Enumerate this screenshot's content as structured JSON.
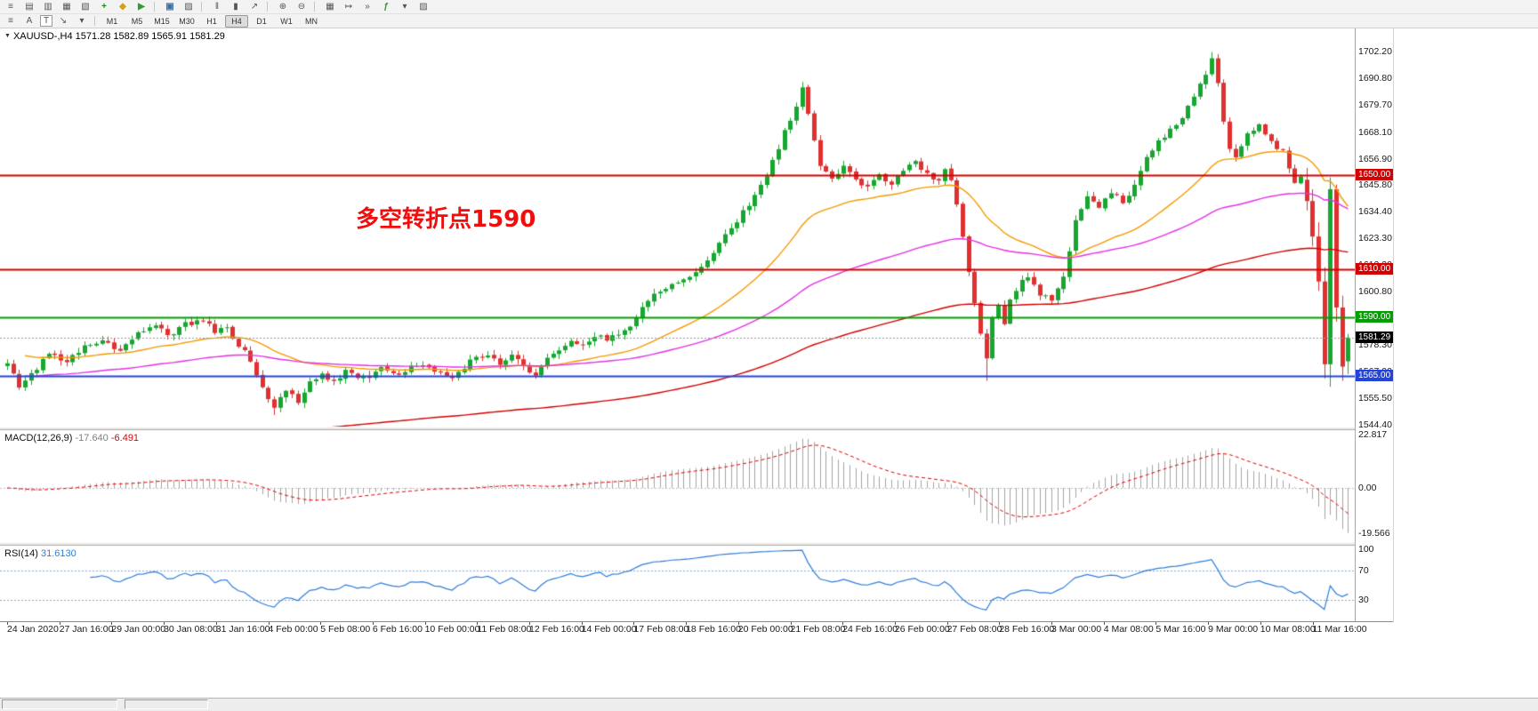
{
  "toolbar_main": {
    "icons": [
      {
        "name": "market-watch-icon",
        "glyph": "≡"
      },
      {
        "name": "data-window-icon",
        "glyph": "▤"
      },
      {
        "name": "navigator-icon",
        "glyph": "▥"
      },
      {
        "name": "terminal-icon",
        "glyph": "▦"
      },
      {
        "name": "strategy-tester-icon",
        "glyph": "▧"
      },
      {
        "name": "new-order-icon",
        "glyph": "+",
        "color": "#168a16"
      },
      {
        "name": "metaeditor-icon",
        "glyph": "◆",
        "color": "#d4a017"
      },
      {
        "name": "autotrading-icon",
        "glyph": "▶",
        "color": "#2e9e2e"
      },
      {
        "sep": true
      },
      {
        "name": "new-chart-icon",
        "glyph": "▣",
        "color": "#3a6ea5"
      },
      {
        "name": "profiles-icon",
        "glyph": "▨"
      },
      {
        "sep": true
      },
      {
        "name": "bar-chart-icon",
        "glyph": "‖"
      },
      {
        "name": "candlestick-chart-icon",
        "glyph": "▮"
      },
      {
        "name": "line-chart-icon",
        "glyph": "↗"
      },
      {
        "sep": true
      },
      {
        "name": "zoom-in-icon",
        "glyph": "⊕"
      },
      {
        "name": "zoom-out-icon",
        "glyph": "⊖"
      },
      {
        "sep": true
      },
      {
        "name": "tile-windows-icon",
        "glyph": "▦"
      },
      {
        "name": "auto-scroll-icon",
        "glyph": "↦"
      },
      {
        "name": "chart-shift-icon",
        "glyph": "»"
      },
      {
        "name": "indicators-icon",
        "glyph": "ƒ",
        "color": "#2e9e2e"
      },
      {
        "name": "periods-icon",
        "glyph": "▾"
      },
      {
        "name": "templates-icon",
        "glyph": "▨"
      }
    ]
  },
  "toolbar_line": {
    "icons": [
      {
        "name": "line-studies-icon",
        "glyph": "≡"
      },
      {
        "name": "text-label-tool-icon",
        "glyph": "A"
      },
      {
        "name": "text-box-tool-icon",
        "glyph": "T",
        "boxed": true
      },
      {
        "name": "arrows-tool-icon",
        "glyph": "↘"
      },
      {
        "name": "tool-dropdown-icon",
        "glyph": "▾"
      }
    ]
  },
  "timeframes": {
    "items": [
      "M1",
      "M5",
      "M15",
      "M30",
      "H1",
      "H4",
      "D1",
      "W1",
      "MN"
    ],
    "active": "H4"
  },
  "chart": {
    "header": {
      "marker": "▼",
      "text": "XAUUSD-,H4  1571.28 1582.89 1565.91 1581.29"
    },
    "annotation": {
      "text": "多空转折点1590",
      "color": "#f20d0d"
    },
    "colors": {
      "up": "#17a62f",
      "down": "#e03131"
    },
    "price_axis_labels": [
      "1702.20",
      "1690.80",
      "1679.70",
      "1668.10",
      "1656.90",
      "1645.80",
      "1634.40",
      "1623.30",
      "1612.20",
      "1600.80",
      "1589.60",
      "1578.30",
      "1567.00",
      "1555.50",
      "1544.40"
    ],
    "hlines": [
      {
        "price": 1650.0,
        "label": "1650.00",
        "color": "#d40000"
      },
      {
        "price": 1610.0,
        "label": "1610.00",
        "color": "#d40000"
      },
      {
        "price": 1590.0,
        "label": "1590.00",
        "color": "#00a000"
      },
      {
        "price": 1565.0,
        "label": "1565.00",
        "color": "#2244dd"
      }
    ],
    "bid": {
      "price": 1581.29,
      "label": "1581.29"
    },
    "time_axis_labels": [
      "24 Jan 2020",
      "27 Jan 16:00",
      "29 Jan 00:00",
      "30 Jan 08:00",
      "31 Jan 16:00",
      "4 Feb 00:00",
      "5 Feb 08:00",
      "6 Feb 16:00",
      "10 Feb 00:00",
      "11 Feb 08:00",
      "12 Feb 16:00",
      "14 Feb 00:00",
      "17 Feb 08:00",
      "18 Feb 16:00",
      "20 Feb 00:00",
      "21 Feb 08:00",
      "24 Feb 16:00",
      "26 Feb 00:00",
      "27 Feb 08:00",
      "28 Feb 16:00",
      "3 Mar 00:00",
      "4 Mar 08:00",
      "5 Mar 16:00",
      "9 Mar 00:00",
      "10 Mar 08:00",
      "11 Mar 16:00"
    ]
  },
  "macd_panel": {
    "label": "MACD(12,26,9)",
    "main_value": "-17.640",
    "signal_value": "-6.491",
    "axis": [
      {
        "value": 22.817,
        "label": "22.817"
      },
      {
        "value": 0,
        "label": "0.00"
      },
      {
        "value": -19.566,
        "label": "-19.566"
      }
    ],
    "histogram_color": "#a4a4a4",
    "signal_color": "#e00000"
  },
  "rsi_panel": {
    "label": "RSI(14)",
    "value": "31.6130",
    "axis": [
      {
        "value": 100,
        "label": "100"
      },
      {
        "value": 70,
        "label": "70"
      },
      {
        "value": 30,
        "label": "30"
      }
    ],
    "levels": [
      70,
      30
    ],
    "line_color": "#2f7ed8"
  },
  "chart_data": {
    "type": "candlestick",
    "symbol": "XAUUSD",
    "timeframe": "H4",
    "bars": 227,
    "last_bar": {
      "open": 1571.28,
      "high": 1582.89,
      "low": 1565.91,
      "close": 1581.29
    },
    "y_axis_range": [
      1544.4,
      1702.2
    ],
    "horizontal_lines": [
      1650,
      1610,
      1590,
      1565
    ],
    "price_anchors": [
      [
        0,
        1571
      ],
      [
        2,
        1561
      ],
      [
        4,
        1566
      ],
      [
        7,
        1574
      ],
      [
        10,
        1571
      ],
      [
        13,
        1577
      ],
      [
        16,
        1580
      ],
      [
        19,
        1576
      ],
      [
        22,
        1583
      ],
      [
        25,
        1587
      ],
      [
        27,
        1582
      ],
      [
        30,
        1587
      ],
      [
        33,
        1589
      ],
      [
        35,
        1583
      ],
      [
        37,
        1586
      ],
      [
        39,
        1578
      ],
      [
        41,
        1572
      ],
      [
        43,
        1560
      ],
      [
        45,
        1551
      ],
      [
        47,
        1559
      ],
      [
        49,
        1554
      ],
      [
        51,
        1562
      ],
      [
        53,
        1566
      ],
      [
        55,
        1563
      ],
      [
        57,
        1567
      ],
      [
        60,
        1564
      ],
      [
        63,
        1568
      ],
      [
        66,
        1565
      ],
      [
        69,
        1570
      ],
      [
        72,
        1567
      ],
      [
        75,
        1565
      ],
      [
        78,
        1571
      ],
      [
        81,
        1574
      ],
      [
        83,
        1570
      ],
      [
        85,
        1574
      ],
      [
        87,
        1569
      ],
      [
        89,
        1566
      ],
      [
        91,
        1573
      ],
      [
        93,
        1577
      ],
      [
        95,
        1580
      ],
      [
        97,
        1579
      ],
      [
        99,
        1582
      ],
      [
        101,
        1580
      ],
      [
        103,
        1583
      ],
      [
        105,
        1587
      ],
      [
        107,
        1594
      ],
      [
        109,
        1600
      ],
      [
        111,
        1602
      ],
      [
        113,
        1605
      ],
      [
        115,
        1608
      ],
      [
        117,
        1611
      ],
      [
        119,
        1617
      ],
      [
        121,
        1624
      ],
      [
        123,
        1631
      ],
      [
        125,
        1638
      ],
      [
        127,
        1645
      ],
      [
        129,
        1656
      ],
      [
        131,
        1668
      ],
      [
        133,
        1680
      ],
      [
        134,
        1687
      ],
      [
        135,
        1676
      ],
      [
        136,
        1664
      ],
      [
        137,
        1653
      ],
      [
        139,
        1648
      ],
      [
        141,
        1654
      ],
      [
        143,
        1649
      ],
      [
        145,
        1644
      ],
      [
        147,
        1651
      ],
      [
        149,
        1646
      ],
      [
        151,
        1652
      ],
      [
        153,
        1655
      ],
      [
        155,
        1650
      ],
      [
        157,
        1648
      ],
      [
        158,
        1653
      ],
      [
        159,
        1648
      ],
      [
        160,
        1638
      ],
      [
        161,
        1625
      ],
      [
        162,
        1610
      ],
      [
        163,
        1595
      ],
      [
        164,
        1583
      ],
      [
        165,
        1573
      ],
      [
        166,
        1590
      ],
      [
        167,
        1594
      ],
      [
        168,
        1586
      ],
      [
        169,
        1598
      ],
      [
        170,
        1602
      ],
      [
        172,
        1607
      ],
      [
        174,
        1600
      ],
      [
        176,
        1597
      ],
      [
        178,
        1607
      ],
      [
        180,
        1630
      ],
      [
        182,
        1640
      ],
      [
        184,
        1637
      ],
      [
        186,
        1642
      ],
      [
        188,
        1639
      ],
      [
        190,
        1645
      ],
      [
        192,
        1657
      ],
      [
        194,
        1664
      ],
      [
        196,
        1670
      ],
      [
        198,
        1674
      ],
      [
        200,
        1683
      ],
      [
        202,
        1692
      ],
      [
        203,
        1700
      ],
      [
        204,
        1688
      ],
      [
        205,
        1672
      ],
      [
        206,
        1662
      ],
      [
        207,
        1658
      ],
      [
        209,
        1667
      ],
      [
        211,
        1672
      ],
      [
        213,
        1664
      ],
      [
        215,
        1660
      ],
      [
        216,
        1652
      ],
      [
        217,
        1647
      ],
      [
        218,
        1650
      ]
    ],
    "tail_ohlc": [
      {
        "o": 1648.0,
        "h": 1653.0,
        "l": 1635.0,
        "c": 1639.0
      },
      {
        "o": 1639.0,
        "h": 1644.0,
        "l": 1620.0,
        "c": 1624.0
      },
      {
        "o": 1624.0,
        "h": 1630.0,
        "l": 1601.0,
        "c": 1605.0
      },
      {
        "o": 1605.0,
        "h": 1611.0,
        "l": 1564.0,
        "c": 1570.0
      },
      {
        "o": 1570.0,
        "h": 1649.0,
        "l": 1560.5,
        "c": 1644.0
      },
      {
        "o": 1644.0,
        "h": 1646.0,
        "l": 1588.0,
        "c": 1594.0
      },
      {
        "o": 1594.0,
        "h": 1599.0,
        "l": 1563.0,
        "c": 1569.0
      },
      {
        "o": 1571.28,
        "h": 1582.89,
        "l": 1565.91,
        "c": 1581.29
      }
    ],
    "forced_highs": [
      [
        134,
        1689.3
      ],
      [
        203,
        1702.0
      ]
    ],
    "forced_lows": [
      [
        45,
        1548.5
      ],
      [
        165,
        1563.0
      ]
    ],
    "moving_averages": [
      {
        "name": "ma-fast",
        "period": 34,
        "seed": 1576,
        "start": 3,
        "color": "#f59b00"
      },
      {
        "name": "ma-medium",
        "period": 89,
        "seed": 1565,
        "start": 3,
        "color": "#e530e5"
      },
      {
        "name": "ma-slow",
        "period": 180,
        "seed": 1518,
        "start": 48,
        "color": "#d40000"
      }
    ],
    "macd": {
      "fast": 12,
      "slow": 26,
      "signal": 9,
      "current_main": -17.64,
      "current_signal": -6.491
    },
    "rsi": {
      "period": 14,
      "current": 31.613
    }
  }
}
